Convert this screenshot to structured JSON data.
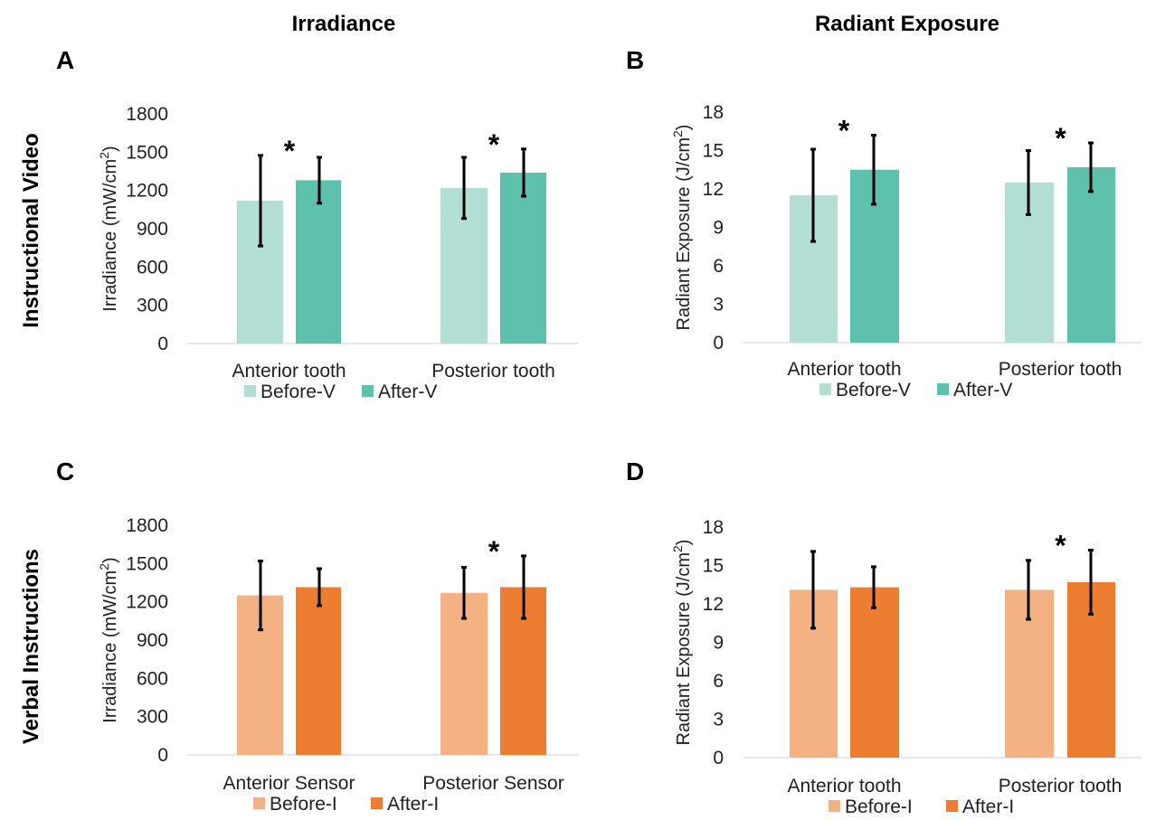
{
  "figure": {
    "column_titles": [
      "Irradiance",
      "Radiant Exposure"
    ],
    "row_titles": [
      "Instructional Video",
      "Verbal Instructions"
    ]
  },
  "chart_data": [
    {
      "panel": "A",
      "type": "bar",
      "ylabel": "Irradiance (mW/cm2)",
      "ylabel_main": "Irradiance (mW/cm",
      "ylabel_sup": "2",
      "ylabel_end": ")",
      "ylim": [
        0,
        1800
      ],
      "yticks": [
        0,
        300,
        600,
        900,
        1200,
        1500,
        1800
      ],
      "categories": [
        "Anterior tooth",
        "Posterior tooth"
      ],
      "series": [
        {
          "name": "Before-V",
          "color": "#b2ded4",
          "values": [
            1120,
            1220
          ],
          "error": [
            355,
            240
          ]
        },
        {
          "name": "After-V",
          "color": "#5ec1ab",
          "values": [
            1280,
            1340
          ],
          "error": [
            180,
            185
          ]
        }
      ],
      "significance": [
        "*",
        "*"
      ]
    },
    {
      "panel": "B",
      "type": "bar",
      "ylabel": "Radiant Exposure (J/cm2)",
      "ylabel_main": "Radiant Exposure (J/cm",
      "ylabel_sup": "2",
      "ylabel_end": ")",
      "ylim": [
        0,
        18
      ],
      "yticks": [
        0,
        3,
        6,
        9,
        12,
        15,
        18
      ],
      "categories": [
        "Anterior tooth",
        "Posterior tooth"
      ],
      "series": [
        {
          "name": "Before-V",
          "color": "#b2ded4",
          "values": [
            11.5,
            12.5
          ],
          "error": [
            3.6,
            2.5
          ]
        },
        {
          "name": "After-V",
          "color": "#5ec1ab",
          "values": [
            13.5,
            13.7
          ],
          "error": [
            2.7,
            1.9
          ]
        }
      ],
      "significance": [
        "*",
        "*"
      ]
    },
    {
      "panel": "C",
      "type": "bar",
      "ylabel": "Irradiance (mW/cm2)",
      "ylabel_main": "Irradiance (mW/cm",
      "ylabel_sup": "2",
      "ylabel_end": ")",
      "ylim": [
        0,
        1800
      ],
      "yticks": [
        0,
        300,
        600,
        900,
        1200,
        1500,
        1800
      ],
      "categories": [
        "Anterior Sensor",
        "Posterior Sensor"
      ],
      "series": [
        {
          "name": "Before-I",
          "color": "#f4b183",
          "values": [
            1250,
            1270
          ],
          "error": [
            270,
            200
          ]
        },
        {
          "name": "After-I",
          "color": "#ed7d31",
          "values": [
            1315,
            1315
          ],
          "error": [
            145,
            245
          ]
        }
      ],
      "significance": [
        "",
        "*"
      ]
    },
    {
      "panel": "D",
      "type": "bar",
      "ylabel": "Radiant Exposure (J/cm2)",
      "ylabel_main": "Radiant Exposure (J/cm",
      "ylabel_sup": "2",
      "ylabel_end": ")",
      "ylim": [
        0,
        18
      ],
      "yticks": [
        0,
        3,
        6,
        9,
        12,
        15,
        18
      ],
      "categories": [
        "Anterior tooth",
        "Posterior tooth"
      ],
      "series": [
        {
          "name": "Before-I",
          "color": "#f4b183",
          "values": [
            13.1,
            13.1
          ],
          "error": [
            3.0,
            2.3
          ]
        },
        {
          "name": "After-I",
          "color": "#ed7d31",
          "values": [
            13.3,
            13.7
          ],
          "error": [
            1.6,
            2.5
          ]
        }
      ],
      "significance": [
        "",
        "*"
      ]
    }
  ]
}
